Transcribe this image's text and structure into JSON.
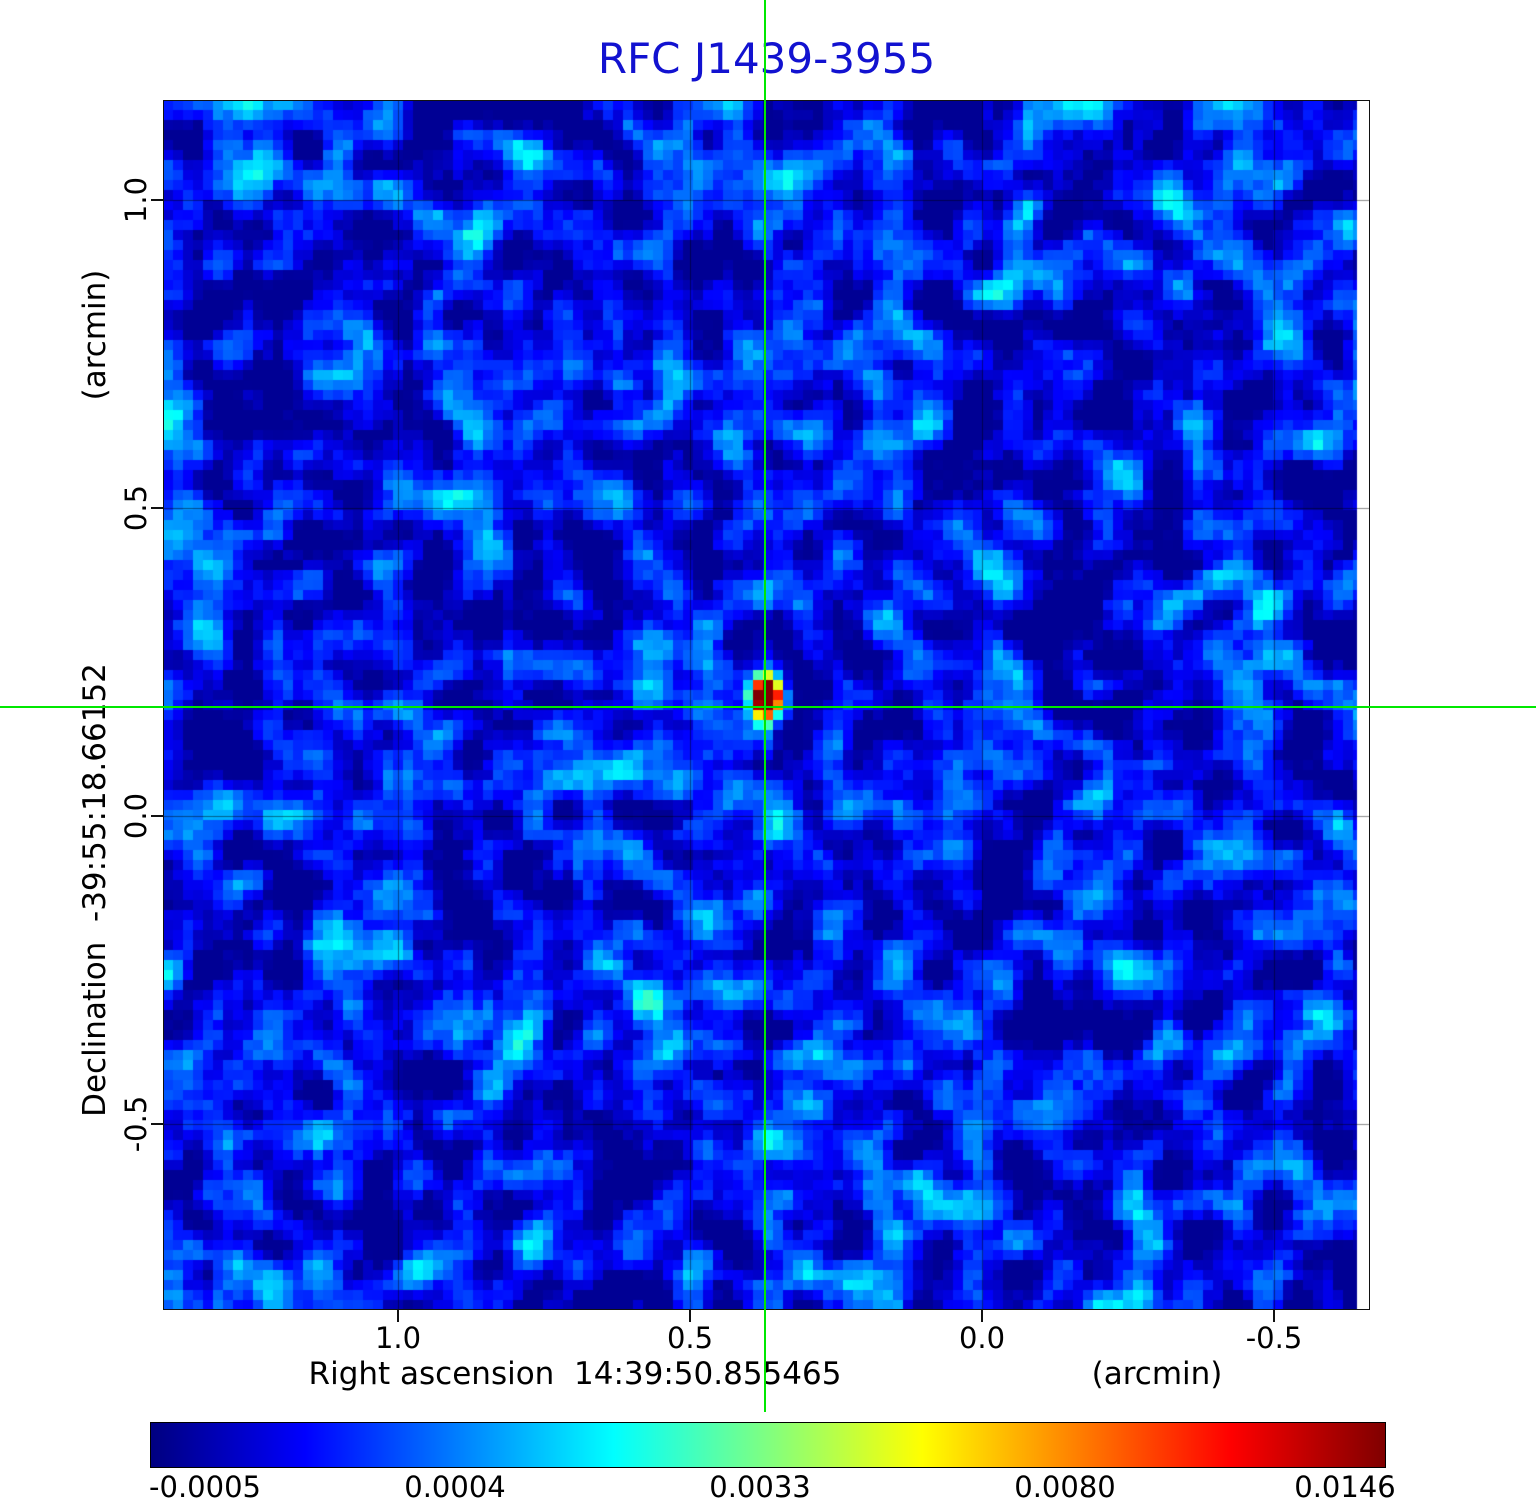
{
  "title": "RFC J1439-3955",
  "colors": {
    "title": "#1212d0",
    "crosshair": "#00e800",
    "axis_text": "#000000"
  },
  "axes": {
    "x_label": "Right ascension  14:39:50.855465",
    "x_unit": "(arcmin)",
    "y_label": "Declination  -39:55:18.66152",
    "y_unit": "(arcmin)",
    "x_ticks": [
      "1.0",
      "0.5",
      "0.0",
      "-0.5"
    ],
    "y_ticks": [
      "1.0",
      "0.5",
      "0.0",
      "-0.5"
    ]
  },
  "colorbar": {
    "colormap": "jet",
    "labels": [
      "-0.0005",
      "0.0004",
      "0.0033",
      "0.0080",
      "0.0146"
    ]
  },
  "chart_data": {
    "type": "heatmap",
    "title": "RFC J1439-3955",
    "xlabel": "Right ascension 14:39:50.855465 (arcmin)",
    "ylabel": "Declination -39:55:18.66152 (arcmin)",
    "x_range_arcmin": [
      1.4,
      -0.66
    ],
    "y_range_arcmin": [
      1.16,
      -0.84
    ],
    "grid": true,
    "colormap": "jet",
    "intensity_scale_ticks": [
      -0.0005,
      0.0004,
      0.0033,
      0.008,
      0.0146
    ],
    "background_noise_level": 0.0005,
    "peak_value": 0.0146,
    "source": {
      "x_frac": 0.4987,
      "y_frac": 0.494,
      "ra_offset_arcmin": 0.37,
      "dec_offset_arcmin": 0.17
    },
    "crosshair": {
      "x_frac": 0.4987,
      "y_frac": 0.501
    },
    "noise_seed": 20240615
  }
}
